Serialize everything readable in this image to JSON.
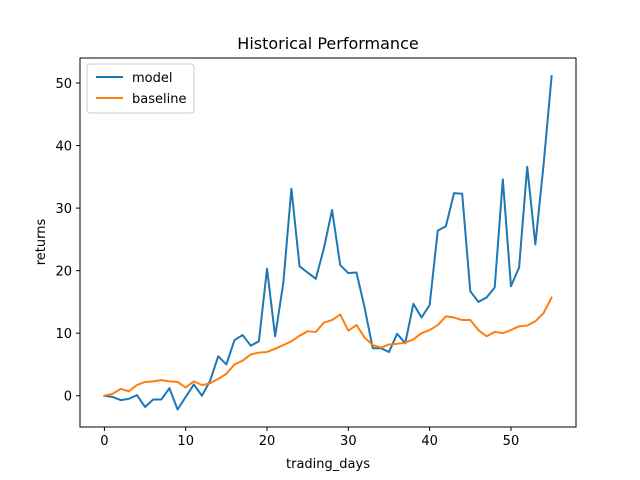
{
  "chart_data": {
    "type": "line",
    "title": "Historical Performance",
    "xlabel": "trading_days",
    "ylabel": "returns",
    "xlim": [
      -3.0,
      58.0
    ],
    "ylim": [
      -5.0,
      54.0
    ],
    "xticks": [
      0,
      10,
      20,
      30,
      40,
      50
    ],
    "yticks": [
      0,
      10,
      20,
      30,
      40,
      50
    ],
    "grid": false,
    "legend_position": "top-left",
    "x": [
      0,
      1,
      2,
      3,
      4,
      5,
      6,
      7,
      8,
      9,
      10,
      11,
      12,
      13,
      14,
      15,
      16,
      17,
      18,
      19,
      20,
      21,
      22,
      23,
      24,
      25,
      26,
      27,
      28,
      29,
      30,
      31,
      32,
      33,
      34,
      35,
      36,
      37,
      38,
      39,
      40,
      41,
      42,
      43,
      44,
      45,
      46,
      47,
      48,
      49,
      50,
      51,
      52,
      53,
      54,
      55
    ],
    "series": [
      {
        "name": "model",
        "color": "#1f77b4",
        "values": [
          0.0,
          -0.2,
          -0.7,
          -0.5,
          0.1,
          -1.8,
          -0.6,
          -0.6,
          1.2,
          -2.2,
          -0.2,
          1.8,
          0.0,
          2.4,
          6.3,
          5.0,
          8.9,
          9.7,
          8.0,
          8.7,
          20.3,
          9.5,
          18.0,
          33.1,
          20.7,
          19.7,
          18.7,
          23.6,
          29.7,
          20.9,
          19.6,
          19.7,
          14.1,
          7.6,
          7.6,
          7.0,
          9.9,
          8.4,
          14.7,
          12.5,
          14.5,
          26.4,
          27.1,
          32.4,
          32.3,
          16.7,
          15.0,
          15.7,
          17.3,
          34.6,
          17.5,
          20.5,
          36.6,
          24.2,
          36.8,
          51.1
        ]
      },
      {
        "name": "baseline",
        "color": "#ff7f0e",
        "values": [
          0.0,
          0.3,
          1.1,
          0.7,
          1.7,
          2.2,
          2.3,
          2.5,
          2.3,
          2.2,
          1.3,
          2.3,
          1.7,
          2.0,
          2.7,
          3.5,
          5.0,
          5.6,
          6.6,
          6.9,
          7.0,
          7.5,
          8.1,
          8.7,
          9.6,
          10.3,
          10.2,
          11.7,
          12.1,
          13.0,
          10.4,
          11.3,
          9.3,
          8.1,
          7.7,
          8.2,
          8.3,
          8.5,
          9.0,
          10.0,
          10.5,
          11.3,
          12.7,
          12.5,
          12.1,
          12.1,
          10.5,
          9.5,
          10.2,
          10.0,
          10.5,
          11.1,
          11.2,
          11.9,
          13.2,
          15.7
        ]
      }
    ]
  }
}
